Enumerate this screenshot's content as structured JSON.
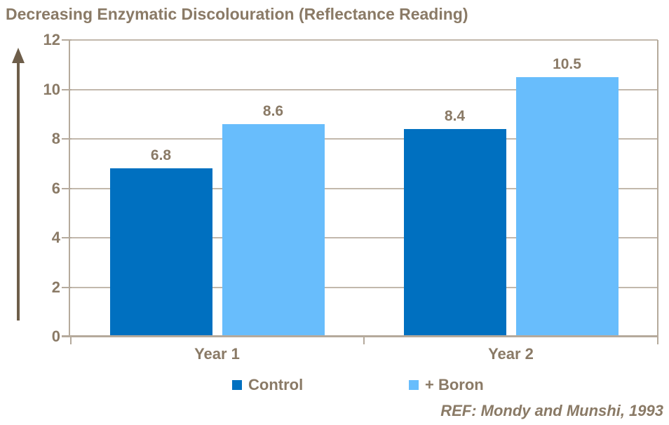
{
  "chart_data": {
    "type": "bar",
    "title": "Decreasing Enzymatic Discolouration (Reflectance Reading)",
    "categories": [
      "Year 1",
      "Year 2"
    ],
    "series": [
      {
        "name": "Control",
        "color": "#0070C0",
        "values": [
          6.8,
          8.4
        ]
      },
      {
        "name": "+ Boron",
        "color": "#68BDFC",
        "values": [
          8.6,
          10.5
        ]
      }
    ],
    "xlabel": "",
    "ylabel": "",
    "ylim": [
      0,
      12
    ],
    "yticks": [
      0,
      2,
      4,
      6,
      8,
      10,
      12
    ],
    "grid": true,
    "data_labels": true,
    "legend_position": "bottom",
    "y_axis_arrow": "up",
    "annotation": "REF: Mondy and Munshi, 1993"
  },
  "colors": {
    "text_brown": "#8A7A66",
    "arrow_brown": "#6E5E4A",
    "axis_line": "#B5AA9C",
    "gridline": "#C2B8AC",
    "background": "#FFFFFF"
  }
}
